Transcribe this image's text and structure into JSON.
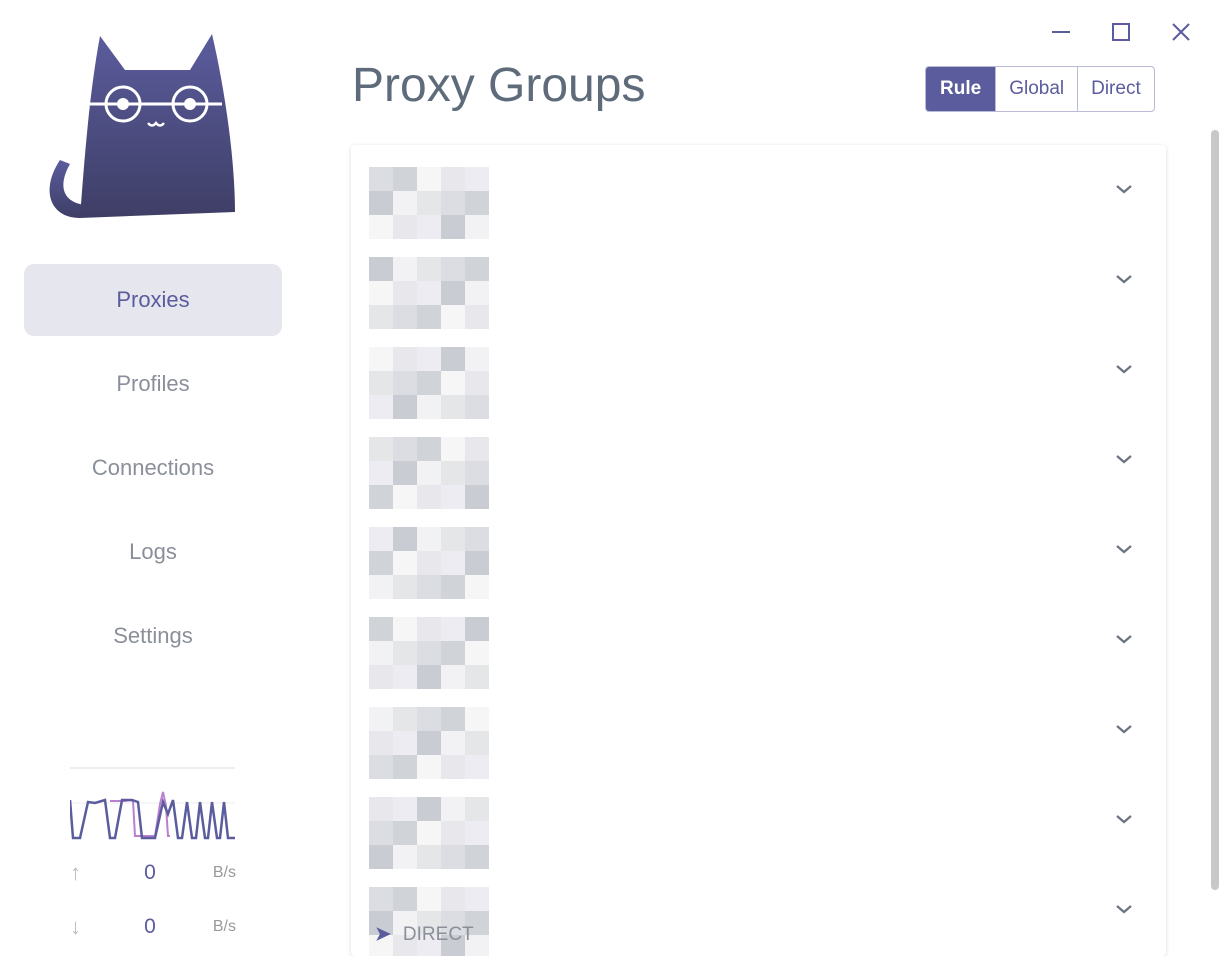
{
  "window": {
    "minimize": "minimize",
    "maximize": "maximize",
    "close": "close"
  },
  "sidebar": {
    "items": [
      {
        "label": "Proxies",
        "active": true
      },
      {
        "label": "Profiles"
      },
      {
        "label": "Connections"
      },
      {
        "label": "Logs"
      },
      {
        "label": "Settings"
      }
    ]
  },
  "traffic": {
    "upload": {
      "value": "0",
      "unit": "B/s"
    },
    "download": {
      "value": "0",
      "unit": "B/s"
    }
  },
  "header": {
    "title": "Proxy Groups",
    "modes": [
      "Rule",
      "Global",
      "Direct"
    ],
    "selected_mode": "Rule"
  },
  "groups": {
    "count": 9,
    "last_selected": "DIRECT"
  },
  "colors": {
    "accent": "#5b5c9d",
    "title": "#5d6b7a",
    "nav_active_bg": "#e6e6ef"
  }
}
